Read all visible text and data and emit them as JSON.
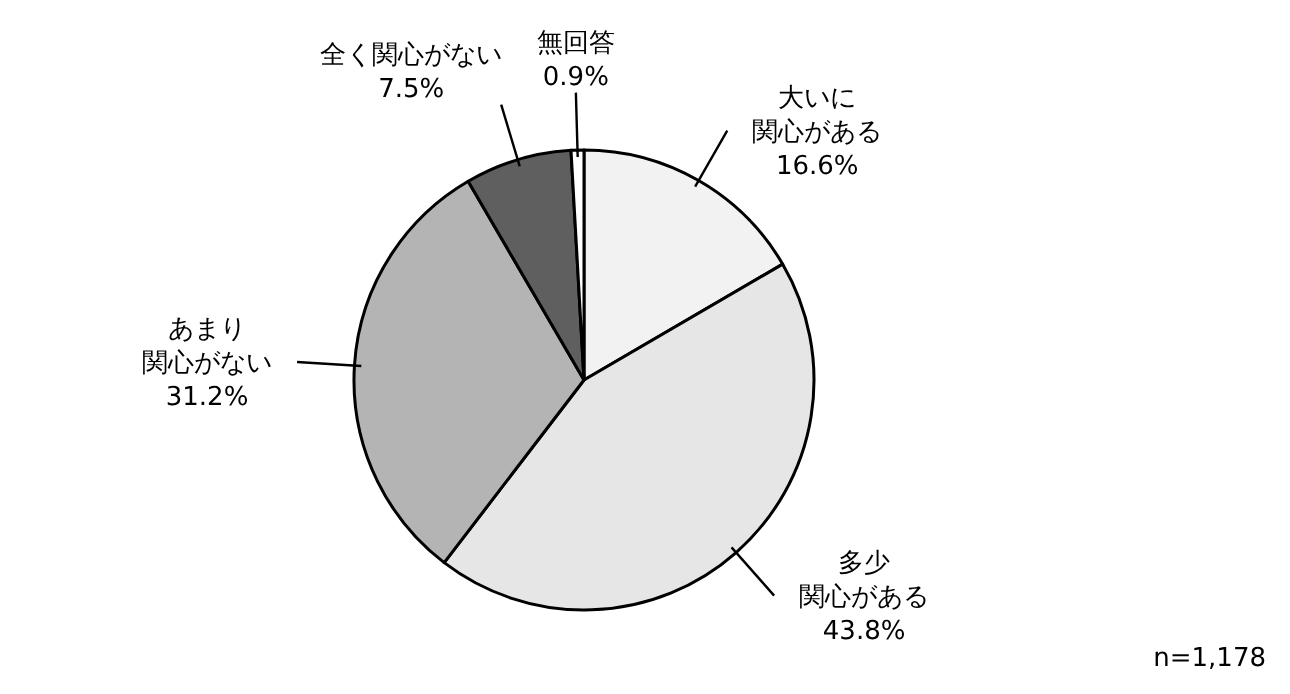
{
  "chart_data": {
    "type": "pie",
    "categories": [
      "大いに関心がある",
      "多少関心がある",
      "あまり関心がない",
      "全く関心がない",
      "無回答"
    ],
    "values": [
      16.6,
      43.8,
      31.2,
      7.5,
      0.9
    ],
    "colors": [
      "#f2f2f2",
      "#e6e6e6",
      "#b4b4b4",
      "#5f5f5f",
      "#ffffff"
    ],
    "value_labels": [
      "16.6%",
      "43.8%",
      "31.2%",
      "7.5%",
      "0.9%"
    ],
    "annotations": [
      "n=1,178"
    ]
  }
}
